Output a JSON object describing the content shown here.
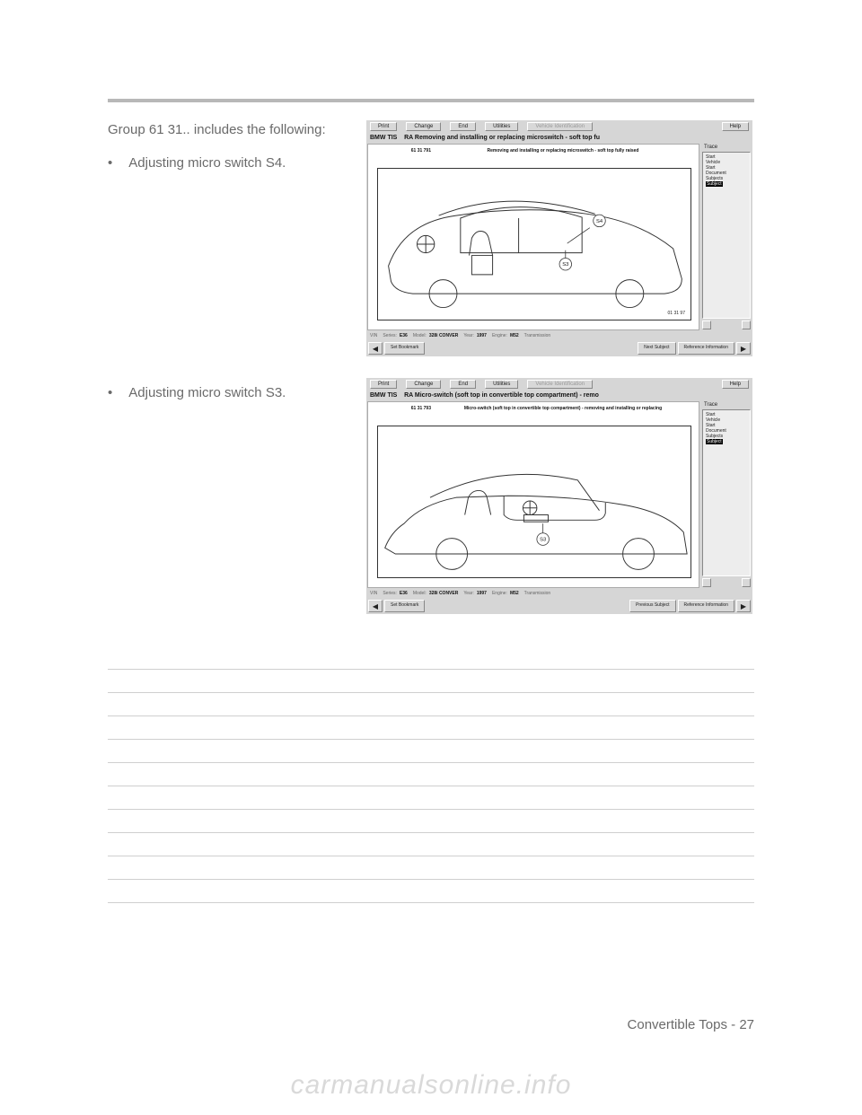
{
  "page": {
    "intro": "Group 61 31.. includes the following:",
    "bullet1": "Adjusting micro switch S4.",
    "bullet2": "Adjusting micro switch S3.",
    "footer": "Convertible Tops - 27",
    "watermark": "carmanualsonline.info",
    "note_line_count": 11
  },
  "tis_common": {
    "menu": {
      "print": "Print",
      "change": "Change",
      "end": "End",
      "utilities": "Utilities",
      "vehicle": "Vehicle Identification",
      "help": "Help"
    },
    "brand": "BMW TIS",
    "trace_label": "Trace",
    "trace_items": [
      "Start",
      "Vehicle",
      "Start",
      "Document",
      "Subjects"
    ],
    "trace_selected": "Subject",
    "status_labels": {
      "vin": "VIN",
      "series": "Series:",
      "model": "Model:",
      "year": "Year:",
      "engine": "Engine:",
      "trans": "Transmission"
    },
    "status_values": {
      "series": "E36",
      "model": "328i CONVER",
      "year": "1997",
      "engine": "M52"
    },
    "nav": {
      "set_bookmark": "Set Bookmark",
      "reference": "Reference Information"
    }
  },
  "tis1": {
    "title": "RA  Removing and installing or replacing microswitch - soft top fu",
    "fignum": "61 31 791",
    "figtitle": "Removing and installing or replacing microswitch - soft top fully raised",
    "img_num": "01 31 97",
    "callout1": "S4",
    "callout2": "S3",
    "nav_center": "Next Subject"
  },
  "tis2": {
    "title": "RA  Micro-switch (soft top in convertible top compartment) - remo",
    "fignum": "61 31 793",
    "figtitle": "Micro-switch (soft top in convertible top compartment) - removing and installing or replacing",
    "img_num": "",
    "callout1": "S3",
    "nav_center": "Previous Subject"
  }
}
